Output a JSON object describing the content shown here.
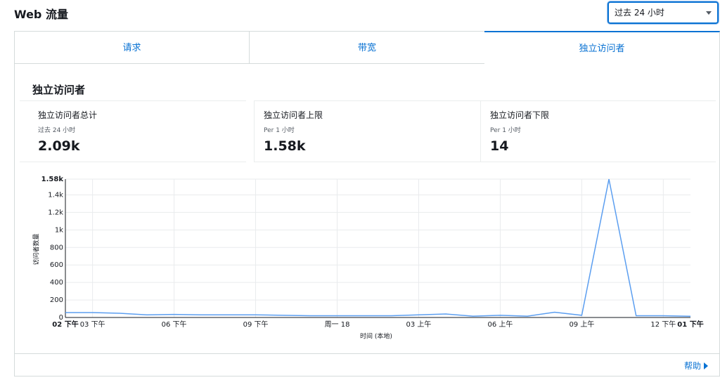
{
  "header": {
    "title": "Web 流量",
    "range_select": "过去 24 小时"
  },
  "tabs": [
    "请求",
    "带宽",
    "独立访问者"
  ],
  "section": {
    "title": "独立访问者",
    "stats": [
      {
        "label": "独立访问者总计",
        "sub": "过去 24 小时",
        "value": "2.09k"
      },
      {
        "label": "独立访问者上限",
        "sub": "Per 1 小时",
        "value": "1.58k"
      },
      {
        "label": "独立访问者下限",
        "sub": "Per 1 小时",
        "value": "14"
      }
    ]
  },
  "chart_data": {
    "type": "line",
    "y_label": "访问者数量",
    "x_label": "时间 (本地)",
    "categories": [
      "02 下午",
      "03 下午",
      null,
      null,
      "06 下午",
      null,
      null,
      "09 下午",
      null,
      null,
      "周一 18",
      null,
      null,
      "03 上午",
      null,
      null,
      "06 上午",
      null,
      null,
      "09 上午",
      null,
      null,
      "12 下午",
      "01 下午"
    ],
    "series": [
      {
        "name": "独立访问者",
        "color": "#5b9ef0",
        "values": [
          56,
          56,
          48,
          30,
          35,
          30,
          30,
          30,
          25,
          20,
          20,
          20,
          20,
          30,
          40,
          15,
          25,
          15,
          60,
          25,
          1580,
          20,
          20,
          14
        ]
      }
    ],
    "ylim": [
      0,
      1580
    ],
    "yticks": [
      0,
      200,
      400,
      600,
      800,
      {
        "value": 1000,
        "label": "1k"
      },
      {
        "value": 1200,
        "label": "1.2k"
      },
      {
        "value": 1400,
        "label": "1.4k"
      },
      {
        "value": 1580,
        "label": "1.58k"
      }
    ],
    "grid": true
  },
  "footer": {
    "help": "帮助"
  }
}
